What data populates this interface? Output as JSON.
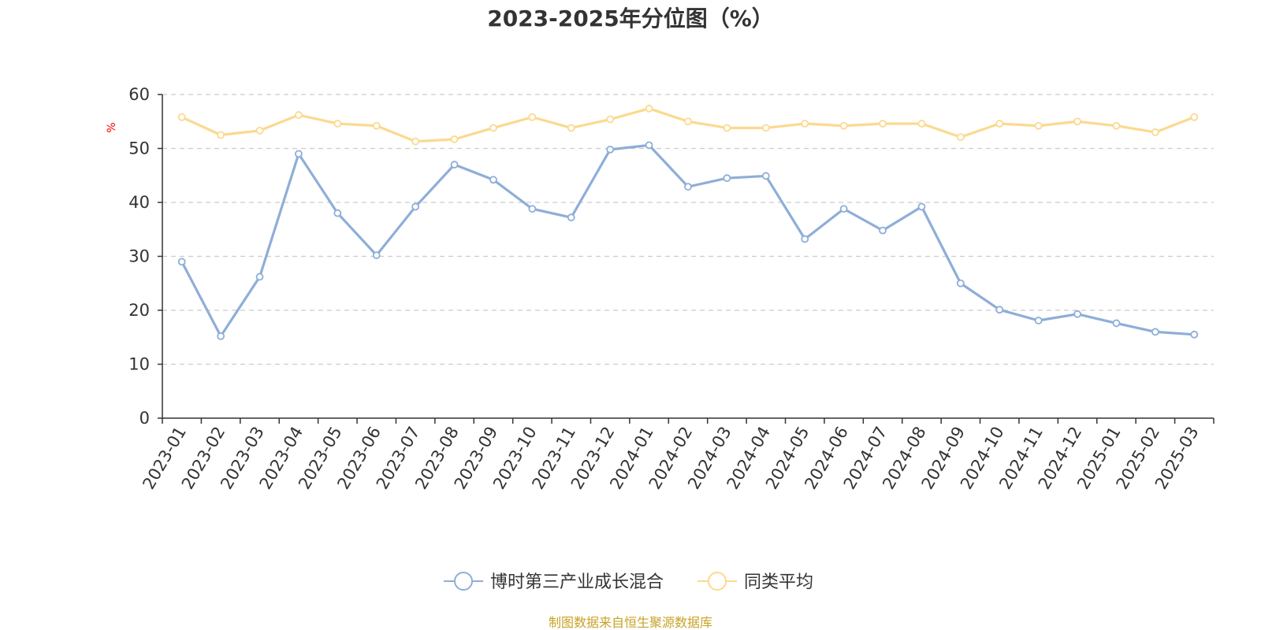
{
  "chart_data": {
    "type": "line",
    "title": "2023-2025年分位图（%）",
    "ylabel": "%",
    "xlabel": "",
    "ylim": [
      0,
      60
    ],
    "yticks": [
      0,
      10,
      20,
      30,
      40,
      50,
      60
    ],
    "grid": true,
    "legend_position": "bottom-center",
    "categories": [
      "2023-01",
      "2023-02",
      "2023-03",
      "2023-04",
      "2023-05",
      "2023-06",
      "2023-07",
      "2023-08",
      "2023-09",
      "2023-10",
      "2023-11",
      "2023-12",
      "2024-01",
      "2024-02",
      "2024-03",
      "2024-04",
      "2024-05",
      "2024-06",
      "2024-07",
      "2024-08",
      "2024-09",
      "2024-10",
      "2024-11",
      "2024-12",
      "2025-01",
      "2025-02",
      "2025-03"
    ],
    "series": [
      {
        "name": "博时第三产业成长混合",
        "color": "#8eaed8",
        "values": [
          29.0,
          15.2,
          26.2,
          49.0,
          38.0,
          30.2,
          39.2,
          47.0,
          44.2,
          38.8,
          37.2,
          49.8,
          50.6,
          42.9,
          44.5,
          44.9,
          33.2,
          38.8,
          34.8,
          39.2,
          25.0,
          20.1,
          18.1,
          19.3,
          17.6,
          16.0,
          15.5
        ]
      },
      {
        "name": "同类平均",
        "color": "#fbd98f",
        "values": [
          55.8,
          52.5,
          53.3,
          56.2,
          54.6,
          54.2,
          51.3,
          51.7,
          53.8,
          55.8,
          53.8,
          55.4,
          57.4,
          55.0,
          53.8,
          53.8,
          54.6,
          54.2,
          54.6,
          54.6,
          52.1,
          54.6,
          54.2,
          55.0,
          54.2,
          53.0,
          55.8
        ]
      }
    ]
  },
  "source_note": "制图数据来自恒生聚源数据库",
  "colors": {
    "axis": "#333333",
    "grid": "#cccccc",
    "ylabel": "#ff0000",
    "source": "#c9a227"
  }
}
